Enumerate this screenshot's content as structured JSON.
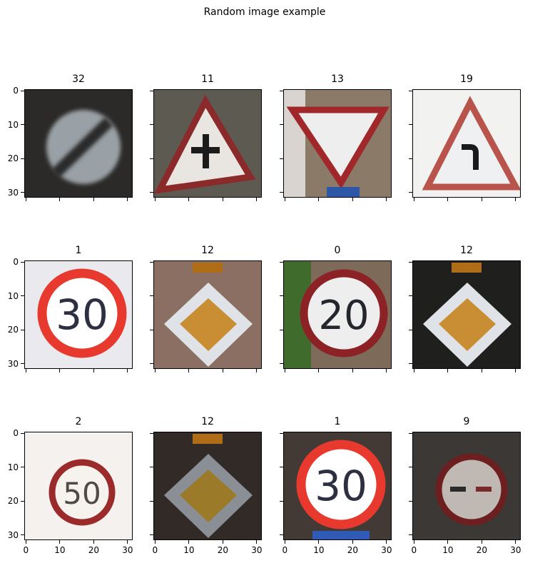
{
  "figure": {
    "suptitle": "Random image example"
  },
  "chart_data": {
    "type": "image-grid",
    "rows": 3,
    "cols": 4,
    "sharex": true,
    "sharey": true,
    "xlim": [
      0,
      31
    ],
    "ylim": [
      31,
      0
    ],
    "xticks": [
      "0",
      "10",
      "20",
      "30"
    ],
    "yticks": [
      "0",
      "10",
      "20",
      "30"
    ],
    "panels": [
      {
        "title": "32",
        "label": 32,
        "scene": "end-restrictions",
        "bg": "#2b2a28"
      },
      {
        "title": "11",
        "label": 11,
        "scene": "triangle-crossroads",
        "bg": "#4b4a45"
      },
      {
        "title": "13",
        "label": 13,
        "scene": "yield",
        "bg": "#7a6a5a"
      },
      {
        "title": "19",
        "label": 19,
        "scene": "triangle-curve",
        "bg": "#f2f2f0"
      },
      {
        "title": "1",
        "label": 1,
        "scene": "speed-30",
        "bg": "#e9e9ee"
      },
      {
        "title": "12",
        "label": 12,
        "scene": "priority-road",
        "bg": "#8c6f63"
      },
      {
        "title": "0",
        "label": 0,
        "scene": "speed-20",
        "bg": "#7d6a58"
      },
      {
        "title": "12",
        "label": 12,
        "scene": "priority-road",
        "bg": "#1f1f1e"
      },
      {
        "title": "2",
        "label": 2,
        "scene": "speed-50",
        "bg": "#f4f1ee"
      },
      {
        "title": "12",
        "label": 12,
        "scene": "priority-road-dark",
        "bg": "#322a27"
      },
      {
        "title": "1",
        "label": 1,
        "scene": "speed-30-bright",
        "bg": "#4e4540"
      },
      {
        "title": "9",
        "label": 9,
        "scene": "no-passing",
        "bg": "#3b3835"
      }
    ]
  }
}
